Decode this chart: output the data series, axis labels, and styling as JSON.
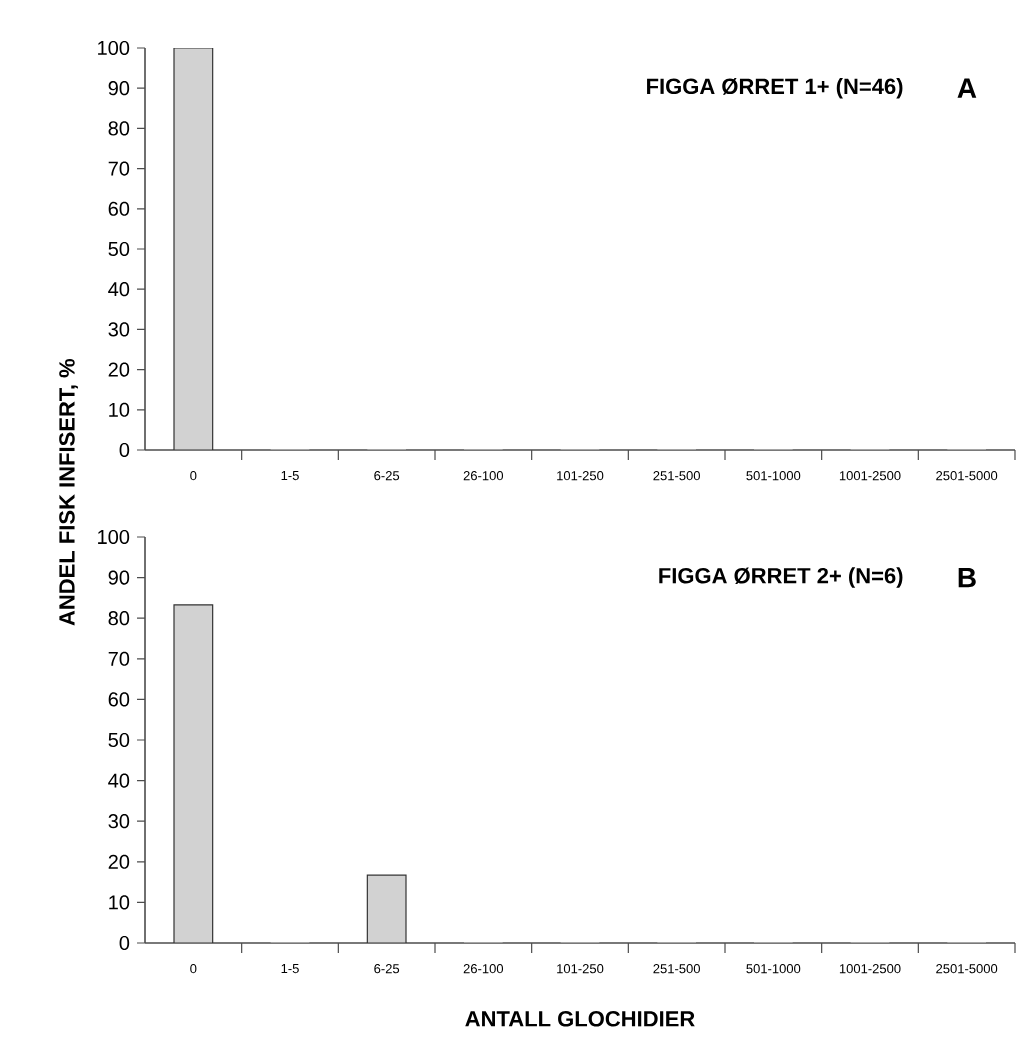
{
  "chart_data": [
    {
      "type": "bar",
      "title": "FIGGA ØRRET 1+ (N=46)",
      "annotations": [
        "A"
      ],
      "ylabel": "ANDEL FISK INFISERT, %",
      "categories": [
        "0",
        "1-5",
        "6-25",
        "26-100",
        "101-250",
        "251-500",
        "501-1000",
        "1001-2500",
        "2501-5000"
      ],
      "values": [
        100,
        0,
        0,
        0,
        0,
        0,
        0,
        0,
        0
      ],
      "color": "#d2d2d2",
      "ylim": [
        0,
        100
      ],
      "yticks": [
        0,
        10,
        20,
        30,
        40,
        50,
        60,
        70,
        80,
        90,
        100
      ]
    },
    {
      "type": "bar",
      "title": "FIGGA ØRRET 2+ (N=6)",
      "annotations": [
        "B"
      ],
      "xlabel": "ANTALL GLOCHIDIER",
      "categories": [
        "0",
        "1-5",
        "6-25",
        "26-100",
        "101-250",
        "251-500",
        "501-1000",
        "1001-2500",
        "2501-5000"
      ],
      "values": [
        83.3,
        0,
        16.7,
        0,
        0,
        0,
        0,
        0,
        0
      ],
      "color": "#d2d2d2",
      "ylim": [
        0,
        100
      ],
      "yticks": [
        0,
        10,
        20,
        30,
        40,
        50,
        60,
        70,
        80,
        90,
        100
      ]
    }
  ]
}
